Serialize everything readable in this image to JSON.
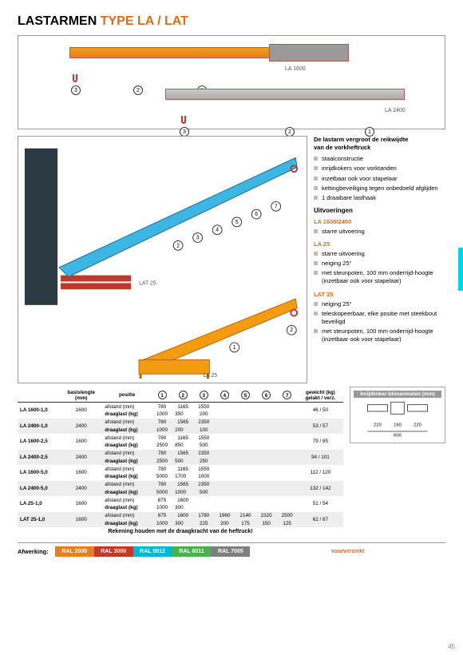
{
  "title_main": "LASTARMEN",
  "title_type": "TYPE LA / LAT",
  "fig1_label": "LA 1600",
  "fig2_label": "LA 2400",
  "fig3_label": "LAT 25",
  "fig4_label": "LA 25",
  "lead1": "De lastarm vergroot de reikwijdte",
  "lead2": "van de vorkheftruck",
  "features": [
    "staalconstructie",
    "inrijdkokers voor vorktanden",
    "inzetbaar ook voor stapelaar",
    "kettingbeveiliging tegen onbedoeld afglijden",
    "1 draaibare lasthaak"
  ],
  "uitv_h": "Uitvoeringen",
  "v1_h": "LA 1600/2400",
  "v1_items": [
    "starre uitvoering"
  ],
  "v2_h": "LA 25",
  "v2_items": [
    "starre uitvoering",
    "neiging 25°",
    "met steunpoten, 100 mm onderrijd-hoogte (inzetbaar ook voor stapelaar)"
  ],
  "v3_h": "LAT 25",
  "v3_items": [
    "neiging 25°",
    "teleskopeerbaar, elke positie met steekbout beveiligd",
    "met steunpoten, 100 mm onderrijd-hoogte (inzetbaar ook voor stapelaar)"
  ],
  "thead": {
    "basis": "basislengte",
    "mm": "(mm)",
    "pos": "positie",
    "gw": "gewicht (kg)",
    "gv": "gelakt / verz."
  },
  "rows": [
    {
      "m": "LA 1600-1,0",
      "b": "1600",
      "a": [
        "780",
        "1165",
        "1550",
        "",
        "",
        "",
        ""
      ],
      "d": [
        "1000",
        "350",
        "200",
        "",
        "",
        "",
        ""
      ],
      "g": "46 / 50"
    },
    {
      "m": "LA 2400-1,0",
      "b": "2400",
      "a": [
        "780",
        "1565",
        "2350",
        "",
        "",
        "",
        ""
      ],
      "d": [
        "1000",
        "200",
        "100",
        "",
        "",
        "",
        ""
      ],
      "g": "53 / 57"
    },
    {
      "m": "LA 1600-2,5",
      "b": "1600",
      "a": [
        "780",
        "1165",
        "1550",
        "",
        "",
        "",
        ""
      ],
      "d": [
        "2500",
        "850",
        "500",
        "",
        "",
        "",
        ""
      ],
      "g": "79 / 85"
    },
    {
      "m": "LA 2400-2,5",
      "b": "2400",
      "a": [
        "780",
        "1565",
        "2350",
        "",
        "",
        "",
        ""
      ],
      "d": [
        "2500",
        "500",
        "250",
        "",
        "",
        "",
        ""
      ],
      "g": "94 / 101"
    },
    {
      "m": "LA 1600-5,0",
      "b": "1600",
      "a": [
        "780",
        "1165",
        "1550",
        "",
        "",
        "",
        ""
      ],
      "d": [
        "5000",
        "1700",
        "1000",
        "",
        "",
        "",
        ""
      ],
      "g": "112 / 120"
    },
    {
      "m": "LA 2400-5,0",
      "b": "2400",
      "a": [
        "780",
        "1565",
        "2350",
        "",
        "",
        "",
        ""
      ],
      "d": [
        "5000",
        "1000",
        "500",
        "",
        "",
        "",
        ""
      ],
      "g": "132 / 142"
    },
    {
      "m": "LA 25-1,0",
      "b": "1600",
      "a": [
        "875",
        "1600",
        "",
        "",
        "",
        "",
        ""
      ],
      "d": [
        "1000",
        "300",
        "",
        "",
        "",
        "",
        ""
      ],
      "g": "51 / 54"
    },
    {
      "m": "LAT 25-1,0",
      "b": "1600",
      "a": [
        "875",
        "1600",
        "1780",
        "1960",
        "2140",
        "2320",
        "2500"
      ],
      "d": [
        "1000",
        "300",
        "225",
        "200",
        "175",
        "150",
        "125"
      ],
      "g": "62 / 67"
    }
  ],
  "row_labels": {
    "a": "afstand (mm)",
    "d": "draaglast (kg)"
  },
  "tnote": "Rekening houden met de draagkracht van de heftruck!",
  "dim_h": "Inrijdkoker-binnenmaten (mm)",
  "dims": {
    "a": "220",
    "b": "160",
    "c": "220",
    "t": "600"
  },
  "afw": "Afwerking:",
  "colors": [
    {
      "n": "RAL 2000",
      "c": "#e67e22"
    },
    {
      "n": "RAL 3000",
      "c": "#c0392b"
    },
    {
      "n": "RAL 5012",
      "c": "#00b8d4"
    },
    {
      "n": "RAL 6011",
      "c": "#4caf50"
    },
    {
      "n": "RAL 7005",
      "c": "#7f7f7f"
    }
  ],
  "vuur": "vuurverzinkt",
  "page": "45"
}
